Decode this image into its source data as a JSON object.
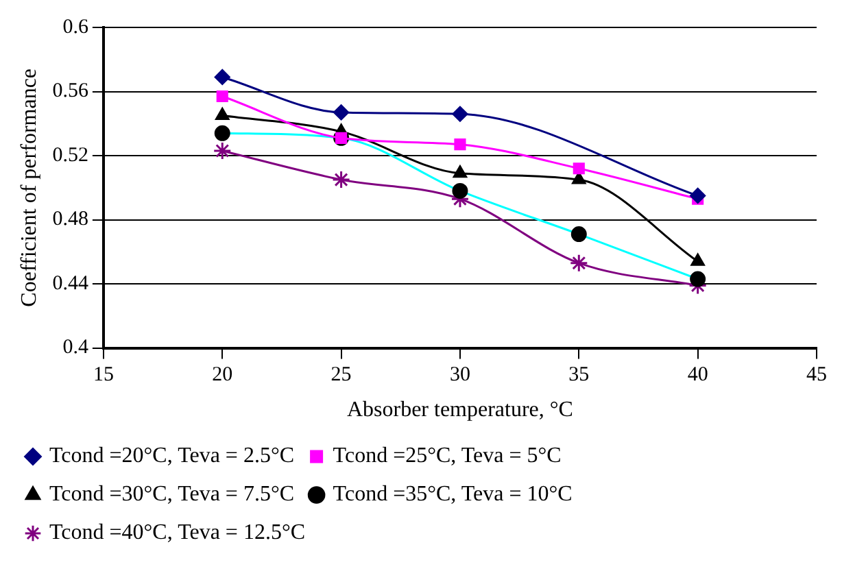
{
  "chart_data": {
    "type": "line",
    "xlabel": "Absorber temperature, °C",
    "ylabel": "Coefficient of performance",
    "x": [
      20,
      25,
      30,
      35,
      40
    ],
    "xlim": [
      15,
      45
    ],
    "xticks": [
      15,
      20,
      25,
      30,
      35,
      40,
      45
    ],
    "ylim": [
      0.4,
      0.6
    ],
    "yticks": [
      0.4,
      0.44,
      0.48,
      0.52,
      0.56,
      0.6
    ],
    "grid": "y",
    "legend": "bottom",
    "series": [
      {
        "name": "Tcond =20°C, Teva = 2.5°C",
        "color": "#000080",
        "marker": "diamond",
        "values": [
          0.569,
          0.547,
          0.546,
          null,
          0.495
        ]
      },
      {
        "name": "Tcond =25°C, Teva = 5°C",
        "color": "#ff00ff",
        "marker": "square",
        "values": [
          0.557,
          0.531,
          0.527,
          0.512,
          0.493
        ]
      },
      {
        "name": "Tcond =30°C, Teva = 7.5°C",
        "color": "#000000",
        "marker": "triangle",
        "values": [
          0.545,
          0.535,
          0.509,
          0.505,
          0.454
        ]
      },
      {
        "name": "Tcond =35°C, Teva = 10°C",
        "color": "#00ffff",
        "marker": "circle",
        "values": [
          0.534,
          0.531,
          0.498,
          0.471,
          0.443
        ]
      },
      {
        "name": "Tcond =40°C, Teva = 12.5°C",
        "color": "#800080",
        "marker": "cross",
        "values": [
          0.523,
          0.505,
          0.493,
          0.453,
          0.439
        ]
      }
    ]
  }
}
